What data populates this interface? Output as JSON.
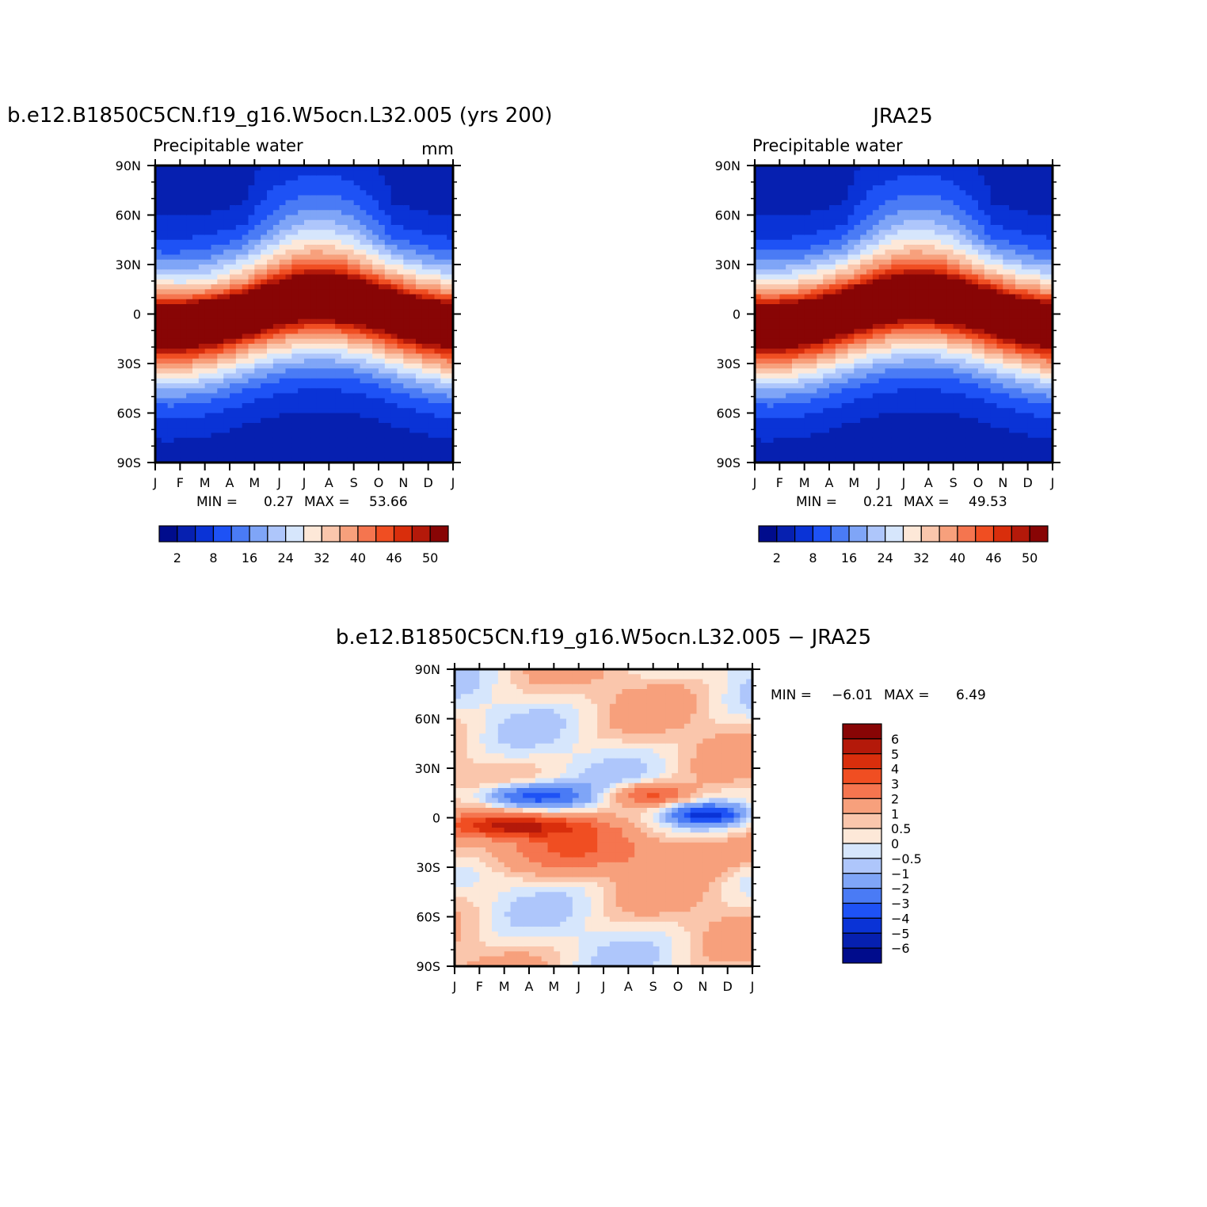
{
  "colors": {
    "model_obs_scale": [
      "#000c8c",
      "#0620b0",
      "#0a33d6",
      "#1e52f5",
      "#4a7bf5",
      "#7fa5f7",
      "#aec6fb",
      "#d6e6fc",
      "#fde8d8",
      "#fac6ac",
      "#f7a07c",
      "#f5754f",
      "#f04e22",
      "#d92e0c",
      "#b4190a",
      "#880505"
    ],
    "diff_scale": [
      "#880505",
      "#b4190a",
      "#d92e0c",
      "#f04e22",
      "#f5754f",
      "#f7a07c",
      "#fac6ac",
      "#fde8d8",
      "#d6e6fc",
      "#aec6fb",
      "#7fa5f7",
      "#4a7bf5",
      "#1e52f5",
      "#0a33d6",
      "#0620b0",
      "#000c8c"
    ]
  },
  "chart_data": [
    {
      "id": "model",
      "type": "heatmap",
      "title": "b.e12.B1850C5CN.f19_g16.W5ocn.L32.005 (yrs 200)",
      "subtitle": "Precipitable water",
      "units": "mm",
      "x_ticks": [
        "J",
        "F",
        "M",
        "A",
        "M",
        "J",
        "J",
        "A",
        "S",
        "O",
        "N",
        "D",
        "J"
      ],
      "y_ticks": [
        "90N",
        "60N",
        "30N",
        "0",
        "30S",
        "60S",
        "90S"
      ],
      "stats": {
        "min_label": "MIN =",
        "min": "0.27",
        "max_label": "MAX =",
        "max": "53.66"
      },
      "colorbar_levels": [
        "2",
        "8",
        "16",
        "24",
        "32",
        "40",
        "46",
        "50"
      ],
      "data_range": [
        0.27,
        53.66
      ]
    },
    {
      "id": "obs",
      "type": "heatmap",
      "title": "JRA25",
      "subtitle": "Precipitable water",
      "x_ticks": [
        "J",
        "F",
        "M",
        "A",
        "M",
        "J",
        "J",
        "A",
        "S",
        "O",
        "N",
        "D",
        "J"
      ],
      "y_ticks": [
        "90N",
        "60N",
        "30N",
        "0",
        "30S",
        "60S",
        "90S"
      ],
      "stats": {
        "min_label": "MIN =",
        "min": "0.21",
        "max_label": "MAX =",
        "max": "49.53"
      },
      "colorbar_levels": [
        "2",
        "8",
        "16",
        "24",
        "32",
        "40",
        "46",
        "50"
      ],
      "data_range": [
        0.21,
        49.53
      ]
    },
    {
      "id": "diff",
      "type": "heatmap",
      "title": "b.e12.B1850C5CN.f19_g16.W5ocn.L32.005 − JRA25",
      "x_ticks": [
        "J",
        "F",
        "M",
        "A",
        "M",
        "J",
        "J",
        "A",
        "S",
        "O",
        "N",
        "D",
        "J"
      ],
      "y_ticks": [
        "90N",
        "60N",
        "30N",
        "0",
        "30S",
        "60S",
        "90S"
      ],
      "stats": {
        "min_label": "MIN =",
        "min": "−6.01",
        "max_label": "MAX =",
        "max": "6.49"
      },
      "colorbar_levels": [
        "6",
        "5",
        "4",
        "3",
        "2",
        "1",
        "0.5",
        "0",
        "−0.5",
        "−1",
        "−2",
        "−3",
        "−4",
        "−5",
        "−6"
      ],
      "data_range": [
        -6.01,
        6.49
      ]
    }
  ]
}
